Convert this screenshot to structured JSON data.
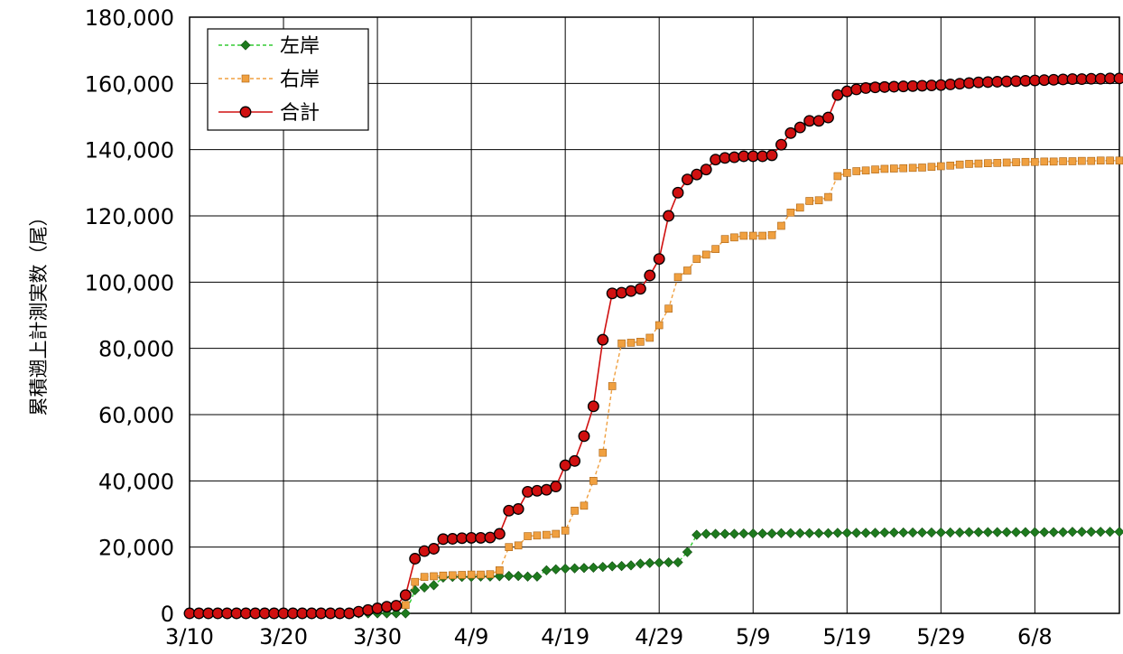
{
  "chart_data": {
    "type": "line",
    "title": "",
    "xlabel": "",
    "ylabel": "累積遡上計測実数（尾）",
    "x_start": "3/10",
    "x_end": "6/17",
    "xtick_labels": [
      "3/10",
      "3/20",
      "3/30",
      "4/9",
      "4/19",
      "4/29",
      "5/9",
      "5/19",
      "5/29",
      "6/8"
    ],
    "ytick_labels": [
      "0",
      "20,000",
      "40,000",
      "60,000",
      "80,000",
      "100,000",
      "120,000",
      "140,000",
      "160,000",
      "180,000"
    ],
    "ylim": [
      0,
      180000
    ],
    "grid": true,
    "legend_position": "top-left",
    "series": [
      {
        "name": "左岸",
        "color": "#1e7a1e",
        "line_color": "#33cc33",
        "line_style": "dashed",
        "marker": "diamond",
        "values": [
          0,
          0,
          0,
          0,
          0,
          0,
          0,
          0,
          0,
          0,
          0,
          0,
          0,
          0,
          0,
          0,
          0,
          0,
          0,
          0,
          0,
          0,
          0,
          0,
          7000,
          7800,
          8500,
          10800,
          11000,
          11000,
          11000,
          11100,
          11100,
          11200,
          11300,
          11300,
          11100,
          11100,
          13000,
          13300,
          13500,
          13600,
          13700,
          13800,
          14000,
          14200,
          14300,
          14500,
          15000,
          15200,
          15300,
          15400,
          15400,
          18500,
          23700,
          24000,
          24000,
          24000,
          24000,
          24100,
          24100,
          24100,
          24100,
          24200,
          24200,
          24200,
          24200,
          24200,
          24200,
          24300,
          24300,
          24300,
          24300,
          24300,
          24400,
          24400,
          24400,
          24400,
          24400,
          24400,
          24400,
          24400,
          24400,
          24500,
          24500,
          24500,
          24500,
          24500,
          24500,
          24500,
          24500,
          24500,
          24500,
          24500,
          24600,
          24600,
          24600,
          24600,
          24600,
          24600
        ]
      },
      {
        "name": "右岸",
        "color": "#f0a040",
        "line_color": "#f0a040",
        "line_style": "dashed",
        "marker": "square",
        "values": [
          0,
          0,
          0,
          0,
          0,
          0,
          0,
          0,
          0,
          0,
          0,
          0,
          0,
          0,
          0,
          0,
          0,
          0,
          500,
          1000,
          1500,
          2000,
          2300,
          2500,
          9500,
          11000,
          11200,
          11400,
          11500,
          11600,
          11700,
          11700,
          11800,
          13000,
          20000,
          20500,
          23300,
          23500,
          23700,
          24000,
          25000,
          31000,
          32500,
          40000,
          48500,
          68600,
          81500,
          81700,
          82000,
          83200,
          87000,
          92000,
          101500,
          103500,
          107000,
          108300,
          110000,
          113000,
          113500,
          114000,
          114000,
          114000,
          114200,
          117000,
          121000,
          122500,
          124500,
          124700,
          125700,
          132000,
          133000,
          133500,
          133700,
          134000,
          134200,
          134300,
          134400,
          134500,
          134600,
          134800,
          135000,
          135200,
          135500,
          135700,
          135800,
          135900,
          136000,
          136100,
          136200,
          136300,
          136300,
          136400,
          136400,
          136500,
          136500,
          136600,
          136600,
          136700,
          136700,
          136700
        ]
      },
      {
        "name": "合計",
        "color": "#d01010",
        "line_color": "#d01010",
        "line_style": "solid",
        "marker": "circle",
        "values": [
          0,
          0,
          0,
          0,
          0,
          0,
          0,
          0,
          0,
          0,
          0,
          0,
          0,
          0,
          0,
          0,
          0,
          0,
          500,
          1000,
          1500,
          2000,
          2300,
          5500,
          16500,
          18800,
          19500,
          22400,
          22500,
          22700,
          22800,
          22800,
          22900,
          24000,
          31000,
          31500,
          36700,
          37000,
          37300,
          38300,
          44700,
          46000,
          53500,
          62500,
          82600,
          96600,
          96800,
          97300,
          98000,
          102000,
          107000,
          120000,
          127000,
          131000,
          132500,
          134000,
          137000,
          137500,
          137700,
          138000,
          138000,
          138000,
          138300,
          141500,
          145000,
          146700,
          148700,
          148700,
          149700,
          156500,
          157600,
          158200,
          158600,
          158800,
          158900,
          159000,
          159100,
          159200,
          159300,
          159400,
          159500,
          159700,
          159900,
          160100,
          160300,
          160400,
          160500,
          160600,
          160700,
          160800,
          160900,
          161000,
          161100,
          161200,
          161300,
          161300,
          161400,
          161400,
          161500,
          161500
        ]
      }
    ]
  }
}
